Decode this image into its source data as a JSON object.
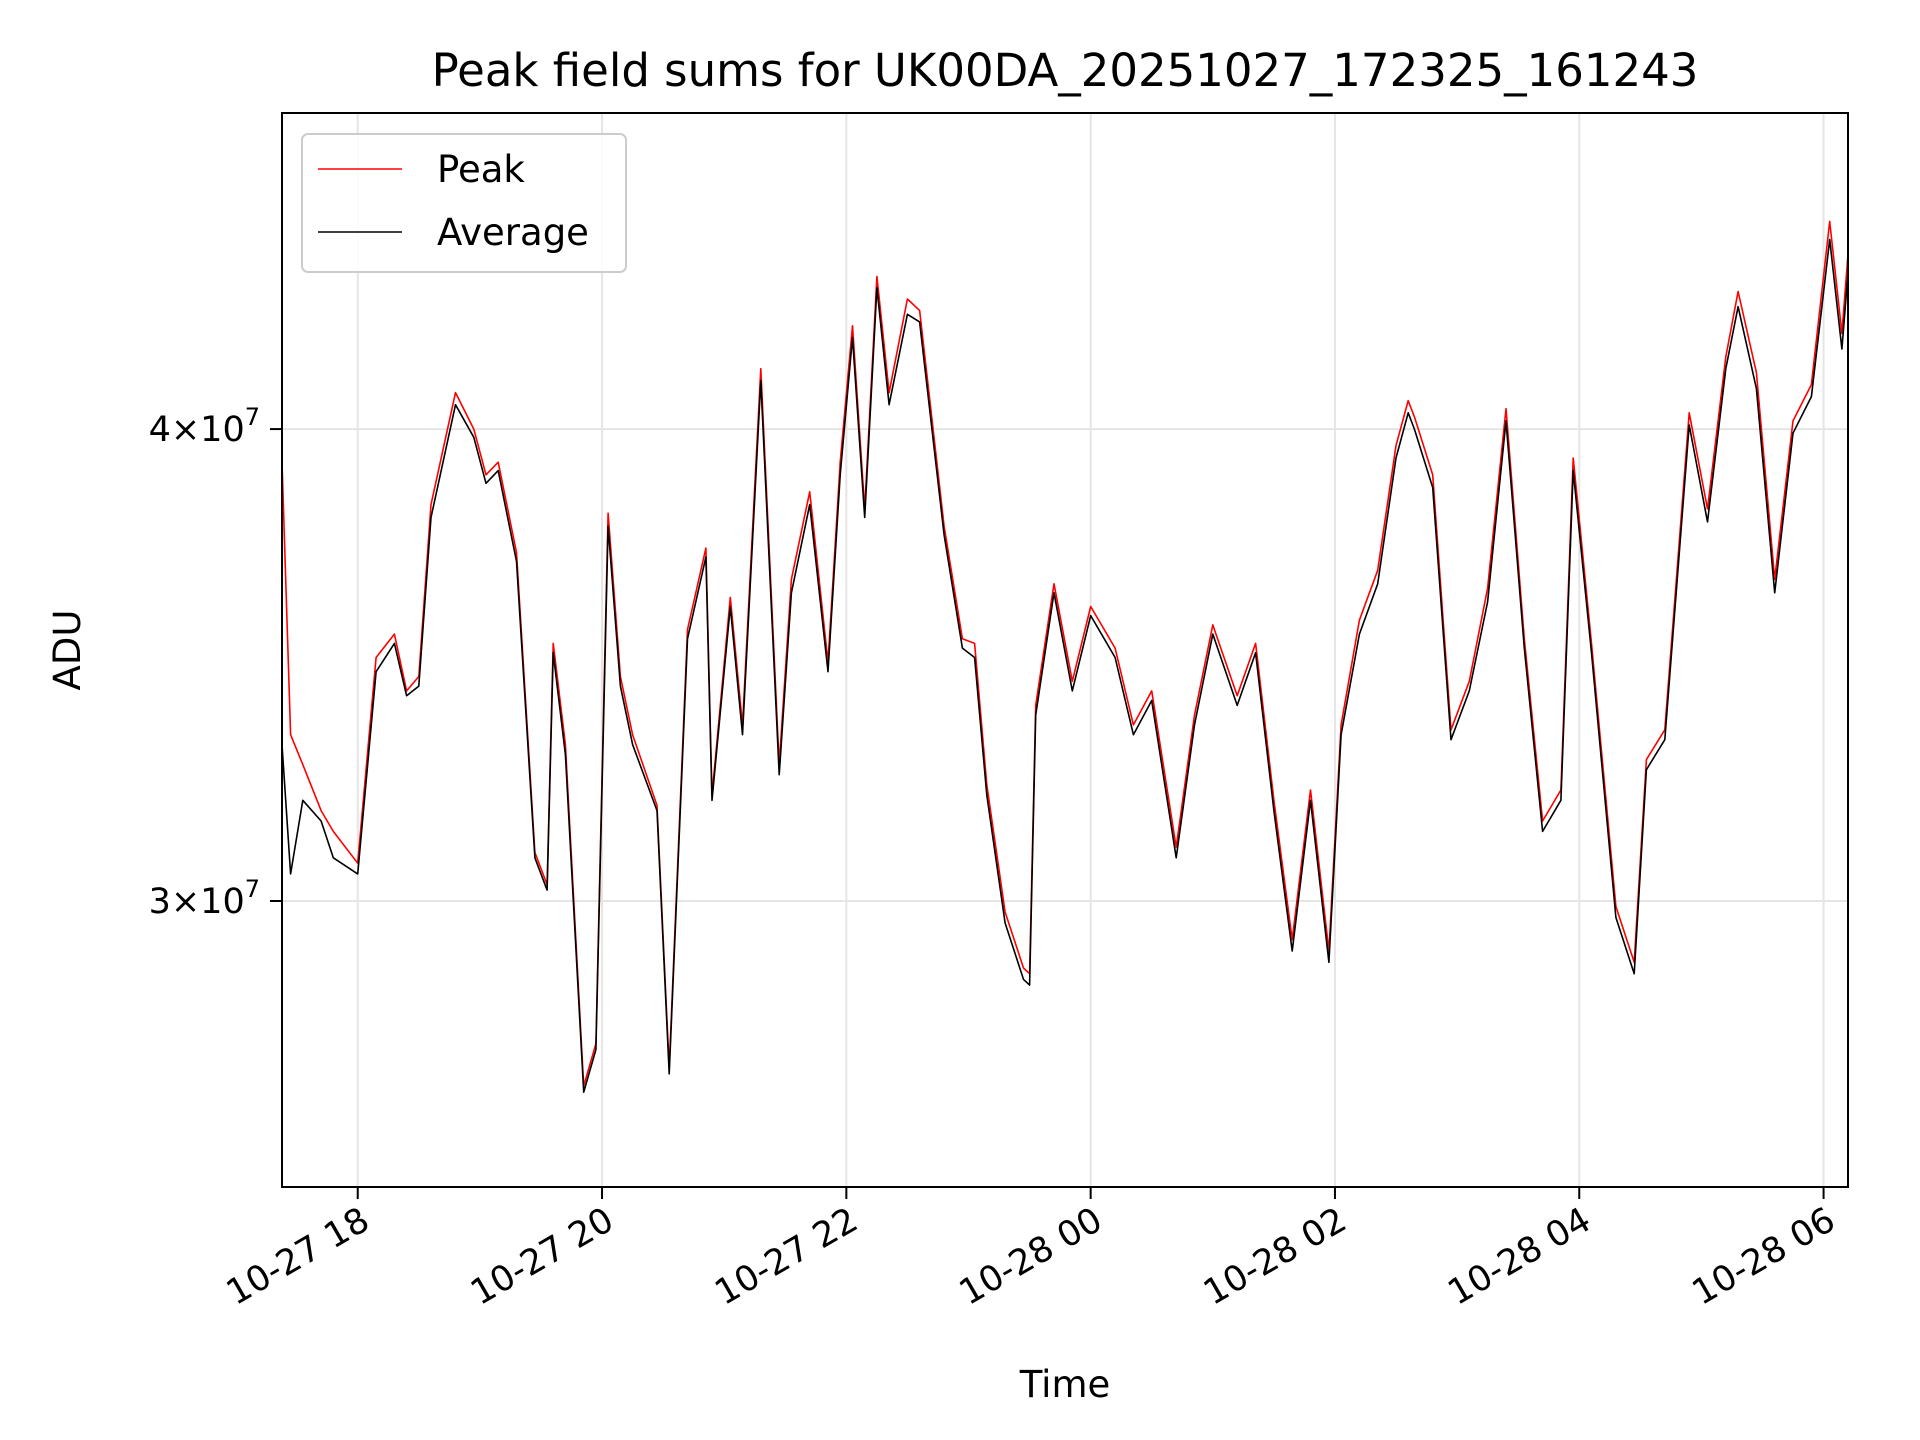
{
  "chart_data": {
    "type": "line",
    "title": "Peak field sums for UK00DA_20251027_172325_161243",
    "xlabel": "Time",
    "ylabel": "ADU",
    "yscale": "log",
    "ylim": [
      25200000,
      48500000
    ],
    "x_unit": "hours since 10-27 17:00",
    "xlim": [
      17.38,
      30.2
    ],
    "grid": true,
    "legend_position": "upper-left",
    "x_ticks": [
      {
        "label": "10-27 18",
        "value": 18
      },
      {
        "label": "10-27 20",
        "value": 20
      },
      {
        "label": "10-27 22",
        "value": 22
      },
      {
        "label": "10-28 00",
        "value": 24
      },
      {
        "label": "10-28 02",
        "value": 26
      },
      {
        "label": "10-28 04",
        "value": 28
      },
      {
        "label": "10-28 06",
        "value": 30
      }
    ],
    "y_ticks": [
      {
        "base": "4×10",
        "exp": "7",
        "value": 40000000
      },
      {
        "base": "3×10",
        "exp": "7",
        "value": 30000000
      }
    ],
    "series": [
      {
        "name": "Peak",
        "color": "#ff0000",
        "x": [
          17.38,
          17.45,
          17.55,
          17.7,
          17.8,
          18.0,
          18.15,
          18.3,
          18.4,
          18.5,
          18.6,
          18.8,
          18.95,
          19.05,
          19.15,
          19.3,
          19.45,
          19.55,
          19.6,
          19.7,
          19.85,
          19.95,
          20.05,
          20.15,
          20.25,
          20.45,
          20.55,
          20.7,
          20.85,
          20.9,
          21.05,
          21.15,
          21.3,
          21.45,
          21.55,
          21.7,
          21.85,
          21.95,
          22.05,
          22.15,
          22.25,
          22.35,
          22.5,
          22.6,
          22.8,
          22.95,
          23.05,
          23.15,
          23.3,
          23.45,
          23.5,
          23.55,
          23.7,
          23.85,
          24.0,
          24.2,
          24.35,
          24.5,
          24.7,
          24.85,
          25.0,
          25.2,
          25.35,
          25.5,
          25.65,
          25.8,
          25.95,
          26.05,
          26.2,
          26.35,
          26.5,
          26.6,
          26.65,
          26.8,
          26.95,
          27.1,
          27.25,
          27.4,
          27.55,
          27.7,
          27.85,
          27.95,
          28.1,
          28.3,
          28.45,
          28.55,
          28.7,
          28.9,
          29.05,
          29.2,
          29.3,
          29.45,
          29.6,
          29.75,
          29.9,
          30.05,
          30.15,
          30.2
        ],
        "y": [
          39200000,
          33200000,
          32600000,
          31700000,
          31300000,
          30700000,
          34800000,
          35300000,
          34100000,
          34400000,
          38200000,
          40900000,
          40000000,
          38900000,
          39200000,
          37100000,
          30900000,
          30300000,
          35100000,
          33000000,
          26800000,
          27500000,
          38000000,
          34400000,
          33200000,
          31800000,
          27100000,
          35400000,
          37200000,
          32000000,
          36100000,
          33400000,
          41500000,
          32600000,
          36500000,
          38500000,
          34700000,
          39200000,
          42600000,
          38100000,
          43900000,
          40900000,
          43300000,
          43000000,
          37700000,
          35200000,
          35100000,
          32200000,
          29800000,
          28800000,
          28700000,
          33800000,
          36400000,
          34300000,
          35900000,
          35000000,
          33400000,
          34100000,
          31000000,
          33600000,
          35500000,
          34000000,
          35100000,
          31900000,
          29300000,
          32100000,
          29100000,
          33400000,
          35600000,
          36700000,
          39600000,
          40700000,
          40300000,
          38900000,
          33300000,
          34300000,
          36300000,
          40500000,
          35200000,
          31500000,
          32100000,
          39300000,
          35100000,
          29900000,
          28900000,
          32700000,
          33300000,
          40400000,
          38100000,
          41800000,
          43500000,
          41400000,
          36500000,
          40200000,
          41100000,
          45400000,
          42400000,
          44500000
        ]
      },
      {
        "name": "Average",
        "color": "#000000",
        "x": [
          17.38,
          17.45,
          17.55,
          17.7,
          17.8,
          18.0,
          18.15,
          18.3,
          18.4,
          18.5,
          18.6,
          18.8,
          18.95,
          19.05,
          19.15,
          19.3,
          19.45,
          19.55,
          19.6,
          19.7,
          19.85,
          19.95,
          20.05,
          20.15,
          20.25,
          20.45,
          20.55,
          20.7,
          20.85,
          20.9,
          21.05,
          21.15,
          21.3,
          21.45,
          21.55,
          21.7,
          21.85,
          21.95,
          22.05,
          22.15,
          22.25,
          22.35,
          22.5,
          22.6,
          22.8,
          22.95,
          23.05,
          23.15,
          23.3,
          23.45,
          23.5,
          23.55,
          23.7,
          23.85,
          24.0,
          24.2,
          24.35,
          24.5,
          24.7,
          24.85,
          25.0,
          25.2,
          25.35,
          25.5,
          25.65,
          25.8,
          25.95,
          26.05,
          26.2,
          26.35,
          26.5,
          26.6,
          26.65,
          26.8,
          26.95,
          27.1,
          27.25,
          27.4,
          27.55,
          27.7,
          27.85,
          27.95,
          28.1,
          28.3,
          28.45,
          28.55,
          28.7,
          28.9,
          29.05,
          29.2,
          29.3,
          29.45,
          29.6,
          29.75,
          29.9,
          30.05,
          30.15,
          30.2
        ],
        "y": [
          33000000,
          30500000,
          31900000,
          31500000,
          30800000,
          30500000,
          34500000,
          35100000,
          34000000,
          34200000,
          37900000,
          40600000,
          39800000,
          38700000,
          39000000,
          36900000,
          30800000,
          30200000,
          34900000,
          32800000,
          26700000,
          27400000,
          37700000,
          34200000,
          33000000,
          31700000,
          27000000,
          35200000,
          37000000,
          31900000,
          35900000,
          33200000,
          41200000,
          32400000,
          36200000,
          38200000,
          34500000,
          38900000,
          42300000,
          37900000,
          43600000,
          40600000,
          42900000,
          42700000,
          37500000,
          35000000,
          34800000,
          32000000,
          29600000,
          28600000,
          28500000,
          33600000,
          36200000,
          34100000,
          35700000,
          34800000,
          33200000,
          33900000,
          30800000,
          33400000,
          35300000,
          33800000,
          34900000,
          31700000,
          29100000,
          31900000,
          28900000,
          33200000,
          35300000,
          36400000,
          39300000,
          40400000,
          40000000,
          38600000,
          33100000,
          34100000,
          36000000,
          40200000,
          35000000,
          31300000,
          31900000,
          39000000,
          34900000,
          29700000,
          28700000,
          32500000,
          33100000,
          40100000,
          37800000,
          41500000,
          43100000,
          41000000,
          36200000,
          39900000,
          40800000,
          44900000,
          42000000,
          44000000
        ]
      }
    ]
  }
}
